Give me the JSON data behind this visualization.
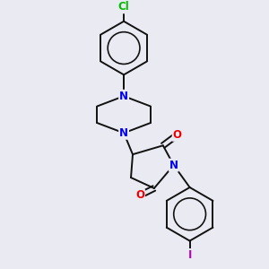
{
  "background_color": "#eaeaf2",
  "atom_colors": {
    "N": "#0000ee",
    "O": "#ee0000",
    "Cl": "#00bb00",
    "I": "#bb00bb"
  },
  "bond_color": "#111111",
  "bond_width": 1.4
}
